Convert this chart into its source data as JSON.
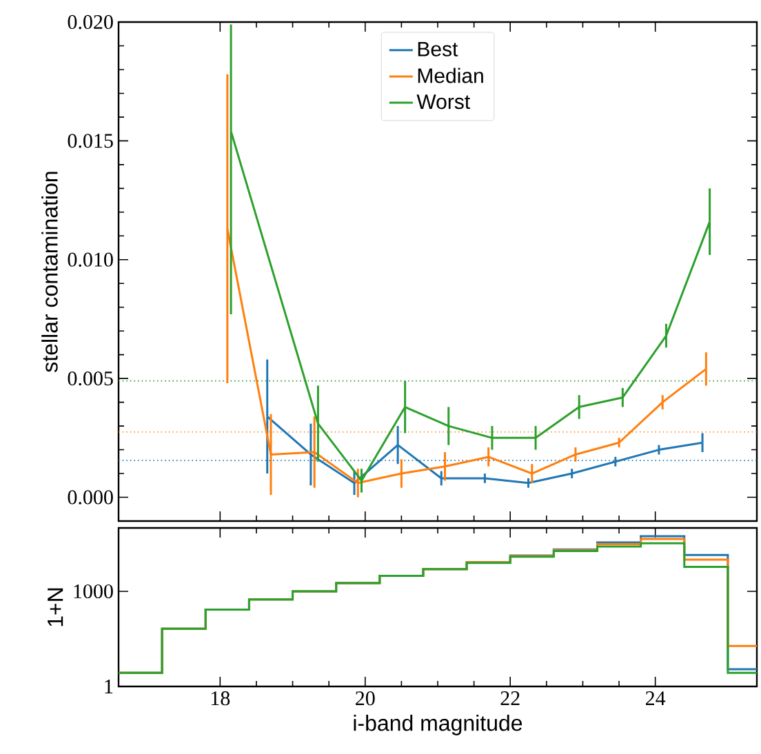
{
  "chart_data": [
    {
      "type": "line",
      "ylabel": "stellar contamination",
      "xlim": [
        16.6,
        25.4
      ],
      "ylim": [
        -0.001,
        0.02
      ],
      "xticks": [
        18,
        20,
        22,
        24
      ],
      "yticks": [
        {
          "value": 0,
          "label": "0.000"
        },
        {
          "value": 0.005,
          "label": "0.005"
        },
        {
          "value": 0.01,
          "label": "0.010"
        },
        {
          "value": 0.015,
          "label": "0.015"
        },
        {
          "value": 0.02,
          "label": "0.020"
        }
      ],
      "tick_labels": "y",
      "grid": false,
      "legend": "top",
      "marker": "none",
      "line_style": "solid",
      "series": [
        {
          "name": "Best",
          "color": "#1f77b4",
          "x": [
            18.65,
            19.25,
            19.85,
            20.45,
            21.05,
            21.65,
            22.25,
            22.85,
            23.45,
            24.05,
            24.65
          ],
          "values": [
            0.0034,
            0.0018,
            0.0006,
            0.0022,
            0.0008,
            0.0008,
            0.0006,
            0.001,
            0.0015,
            0.002,
            0.0023
          ],
          "errors": [
            0.0024,
            0.0013,
            0.0005,
            0.0008,
            0.0003,
            0.0002,
            0.0002,
            0.0002,
            0.0002,
            0.0002,
            0.0004
          ]
        },
        {
          "name": "Median",
          "color": "#ff7f0e",
          "x": [
            18.1,
            18.7,
            19.3,
            19.9,
            20.5,
            21.1,
            21.7,
            22.3,
            22.9,
            23.5,
            24.1,
            24.7
          ],
          "values": [
            0.0113,
            0.0018,
            0.0019,
            0.0006,
            0.001,
            0.0013,
            0.0017,
            0.001,
            0.0018,
            0.0023,
            0.004,
            0.0054
          ],
          "errors": [
            0.0065,
            0.0017,
            0.0015,
            0.0006,
            0.0006,
            0.0006,
            0.0004,
            0.0004,
            0.0003,
            0.0002,
            0.0003,
            0.0007
          ]
        },
        {
          "name": "Worst",
          "color": "#2ca02c",
          "x": [
            18.15,
            19.35,
            19.95,
            20.55,
            21.15,
            21.75,
            22.35,
            22.95,
            23.55,
            24.15,
            24.75
          ],
          "values": [
            0.0154,
            0.0031,
            0.0007,
            0.0038,
            0.003,
            0.0025,
            0.0025,
            0.0038,
            0.0042,
            0.0068,
            0.0116
          ],
          "errors": [
            [
              0.0077,
              0.0199
            ],
            0.0016,
            0.0005,
            0.0011,
            0.0008,
            0.0005,
            0.0005,
            0.0005,
            0.0004,
            0.0005,
            0.0014
          ]
        }
      ],
      "ref_lines": [
        {
          "axis": "y",
          "value": 0.0049,
          "color": "#2ca02c",
          "line_style": "dotted"
        },
        {
          "axis": "y",
          "value": 0.00275,
          "color": "#ff7f0e",
          "line_style": "dotted"
        },
        {
          "axis": "y",
          "value": 0.00155,
          "color": "#1f77b4",
          "line_style": "dotted"
        }
      ]
    },
    {
      "type": "histogram",
      "xlabel": "i-band magnitude",
      "ylabel": "1+N",
      "xlim": [
        16.6,
        25.4
      ],
      "ylim": [
        1,
        100000
      ],
      "xticks": [
        18,
        20,
        22,
        24
      ],
      "yticks": [
        1,
        1000
      ],
      "log": "y",
      "grid": false,
      "legend": false,
      "bins": [
        16.6,
        17.2,
        17.8,
        18.4,
        19.0,
        19.6,
        20.2,
        20.8,
        21.4,
        22.0,
        22.6,
        23.2,
        23.8,
        24.4,
        25.0,
        25.4
      ],
      "series": [
        {
          "color": "#1f77b4",
          "values": [
            2.7,
            66,
            265,
            555,
            1000,
            1820,
            3100,
            5000,
            8300,
            13500,
            21000,
            35000,
            55000,
            14000,
            3.5
          ]
        },
        {
          "color": "#ff7f0e",
          "values": [
            2.7,
            66,
            265,
            555,
            1000,
            1820,
            3100,
            5000,
            8300,
            13000,
            20000,
            31000,
            45000,
            10000,
            19
          ]
        },
        {
          "color": "#2ca02c",
          "values": [
            2.7,
            66,
            265,
            555,
            1000,
            1820,
            3100,
            5000,
            7900,
            12300,
            18700,
            26000,
            33000,
            5900,
            2.7
          ]
        }
      ]
    }
  ]
}
